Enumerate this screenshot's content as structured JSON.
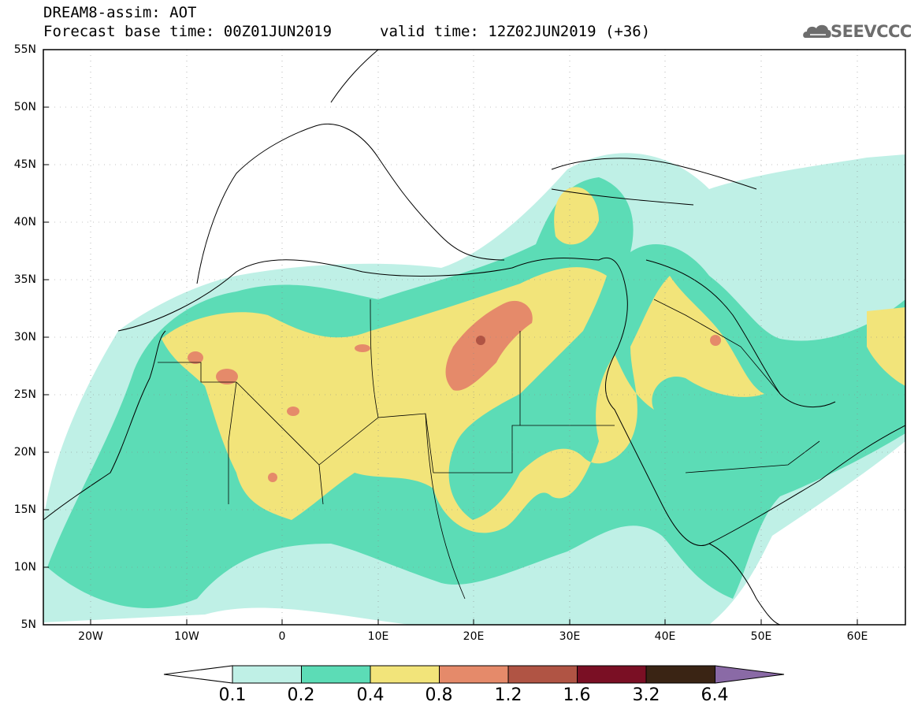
{
  "header": {
    "line1": "DREAM8-assim: AOT",
    "line2_left": "Forecast base time: 00Z01JUN2019",
    "line2_right": "valid time: 12Z02JUN2019 (+36)",
    "logo_text": "SEEVCCC",
    "logo_icon": "cloud-icon"
  },
  "axes": {
    "lat_labels": [
      "55N",
      "50N",
      "45N",
      "40N",
      "35N",
      "30N",
      "25N",
      "20N",
      "15N",
      "10N",
      "5N"
    ],
    "lon_labels": [
      "20W",
      "10W",
      "0",
      "10E",
      "20E",
      "30E",
      "40E",
      "50E",
      "60E"
    ]
  },
  "colorbar": {
    "labels": [
      "0.1",
      "0.2",
      "0.4",
      "0.8",
      "1.2",
      "1.6",
      "3.2",
      "6.4"
    ],
    "colors": [
      "#ffffff",
      "#bff0e6",
      "#5cdcb6",
      "#f2e47a",
      "#e58a6a",
      "#b05444",
      "#7a0f24",
      "#3a2414",
      "#8a6aa6"
    ]
  },
  "map_colors": {
    "light_cyan": "#bff0e6",
    "green": "#5cdcb6",
    "yellow": "#f2e47a",
    "salmon": "#e58a6a",
    "brown": "#b05444"
  }
}
